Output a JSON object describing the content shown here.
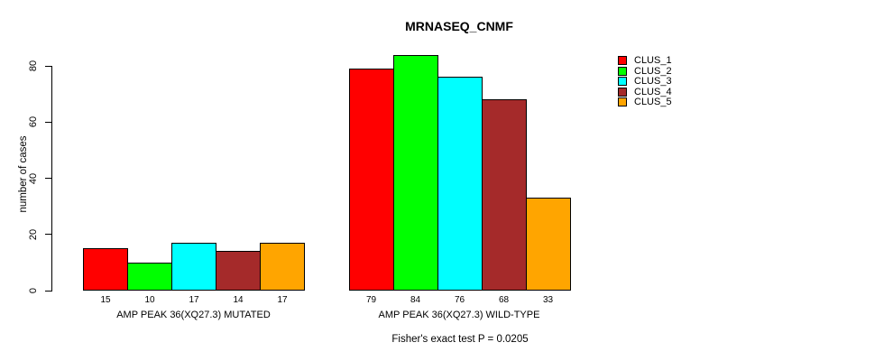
{
  "figure": {
    "title": "MRNASEQ_CNMF",
    "caption": "Fisher's exact test P = 0.0205"
  },
  "y_axis": {
    "label": "number of cases",
    "ticks": [
      0,
      20,
      40,
      60,
      80
    ]
  },
  "legend": {
    "items": [
      {
        "label": "CLUS_1",
        "color": "#FF0000"
      },
      {
        "label": "CLUS_2",
        "color": "#00FF00"
      },
      {
        "label": "CLUS_3",
        "color": "#00FFFF"
      },
      {
        "label": "CLUS_4",
        "color": "#A52A2A"
      },
      {
        "label": "CLUS_5",
        "color": "#FFA500"
      }
    ]
  },
  "chart_data": {
    "type": "bar",
    "title": "MRNASEQ_CNMF",
    "ylabel": "number of cases",
    "ylim": [
      0,
      84
    ],
    "yticks": [
      0,
      20,
      40,
      60,
      80
    ],
    "grid": false,
    "legend_position": "right",
    "categories": [
      "AMP PEAK 36(XQ27.3) MUTATED",
      "AMP PEAK 36(XQ27.3) WILD-TYPE"
    ],
    "series": [
      {
        "name": "CLUS_1",
        "color": "#FF0000",
        "values": [
          15,
          79
        ]
      },
      {
        "name": "CLUS_2",
        "color": "#00FF00",
        "values": [
          10,
          84
        ]
      },
      {
        "name": "CLUS_3",
        "color": "#00FFFF",
        "values": [
          17,
          76
        ]
      },
      {
        "name": "CLUS_4",
        "color": "#A52A2A",
        "values": [
          14,
          68
        ]
      },
      {
        "name": "CLUS_5",
        "color": "#FFA500",
        "values": [
          17,
          33
        ]
      }
    ],
    "bar_value_labels": [
      [
        15,
        10,
        17,
        14,
        17
      ],
      [
        79,
        84,
        76,
        68,
        33
      ]
    ],
    "annotation": "Fisher's exact test P = 0.0205"
  }
}
